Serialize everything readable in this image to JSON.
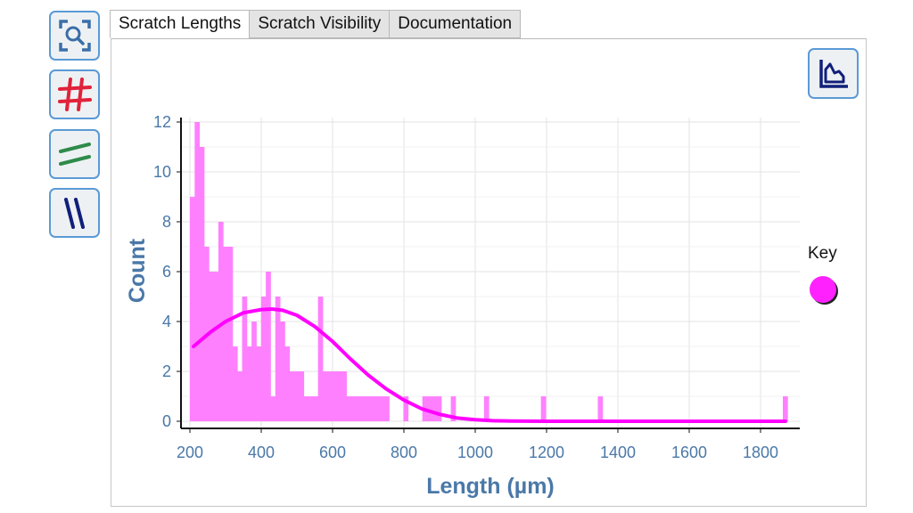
{
  "toolbar": {
    "tools": [
      {
        "name": "zoom-select-tool",
        "icon": "magnify-frame-icon"
      },
      {
        "name": "grid-toggle-tool",
        "icon": "grid-hash-icon"
      },
      {
        "name": "horizontal-lines-tool",
        "icon": "horizontal-lines-icon"
      },
      {
        "name": "vertical-lines-tool",
        "icon": "vertical-lines-icon"
      }
    ]
  },
  "tabs": [
    {
      "label": "Scratch Lengths",
      "active": true
    },
    {
      "label": "Scratch Visibility",
      "active": false
    },
    {
      "label": "Documentation",
      "active": false
    }
  ],
  "chart_type_button": {
    "icon": "area-chart-icon"
  },
  "key": {
    "label": "Key",
    "color": "#ff22ff"
  },
  "chart_data": {
    "type": "bar",
    "title": "",
    "xlabel": "Length (µm)",
    "ylabel": "Count",
    "xlim": [
      190,
      1880
    ],
    "ylim": [
      0,
      12.3
    ],
    "x_ticks": [
      200,
      400,
      600,
      800,
      1000,
      1200,
      1400,
      1600,
      1800
    ],
    "y_ticks": [
      0,
      2,
      4,
      6,
      8,
      10,
      12
    ],
    "grid": true,
    "legend_position": "right",
    "colors": {
      "bars": "#ff80ff",
      "fit_curve": "#ff00ff",
      "axis_text": "#4a78a8"
    },
    "bin_width": 13.3,
    "bin_starts": [
      200,
      213.3,
      226.6,
      239.9,
      253.2,
      266.5,
      279.8,
      293.1,
      306.4,
      319.7,
      333,
      346.3,
      359.6,
      372.9,
      386.2,
      399.5,
      412.8,
      426.1,
      439.4,
      452.7,
      466,
      479.3,
      492.6,
      505.9,
      519.2,
      532.5,
      545.8,
      559.1,
      572.4,
      585.7,
      599,
      612.3,
      625.6,
      638.9,
      652.2,
      665.5,
      678.8,
      692.1,
      705.4,
      718.7,
      732,
      745.3,
      798.5,
      851.7,
      865,
      878.3,
      891.6,
      931.5,
      1024.6,
      1184.2,
      1343.8,
      1862.5
    ],
    "counts": [
      9,
      12,
      11,
      7,
      6,
      6,
      8,
      7,
      7,
      3,
      2,
      5,
      3,
      4,
      3,
      5,
      6,
      1,
      5,
      4,
      3,
      2,
      2,
      2,
      1,
      1,
      1,
      5,
      2,
      2,
      2,
      2,
      2,
      1,
      1,
      1,
      1,
      1,
      1,
      1,
      1,
      1,
      1,
      1,
      1,
      1,
      1,
      1,
      1,
      1,
      1,
      1
    ],
    "fit_curve": {
      "type": "normal",
      "x": [
        210,
        260,
        300,
        350,
        400,
        430,
        460,
        500,
        550,
        600,
        650,
        700,
        750,
        800,
        850,
        900,
        950,
        1000,
        1050,
        1100,
        1200,
        1400,
        1600,
        1870
      ],
      "y": [
        3.0,
        3.6,
        4.0,
        4.35,
        4.48,
        4.5,
        4.45,
        4.25,
        3.8,
        3.2,
        2.5,
        1.85,
        1.3,
        0.85,
        0.5,
        0.28,
        0.13,
        0.06,
        0.02,
        0.01,
        0,
        0,
        0,
        0
      ]
    }
  }
}
